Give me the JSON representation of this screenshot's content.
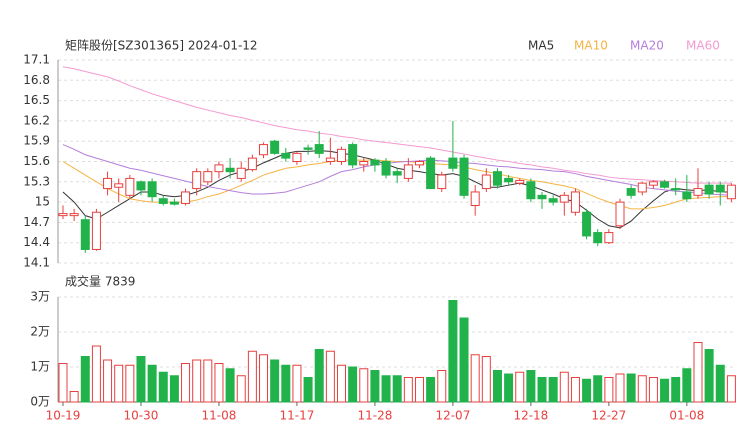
{
  "chart_data": {
    "type": "candlestick",
    "title": "矩阵股份[SZ301365] 2024-01-12",
    "volume_title": "成交量 7839",
    "up_color": "#e8403f",
    "down_color": "#21b24b",
    "categories": [
      "10-19",
      null,
      null,
      null,
      null,
      null,
      null,
      "10-30",
      null,
      null,
      null,
      null,
      null,
      null,
      "11-08",
      null,
      null,
      null,
      null,
      null,
      null,
      "11-17",
      null,
      null,
      null,
      null,
      null,
      null,
      "11-28",
      null,
      null,
      null,
      null,
      null,
      null,
      "12-07",
      null,
      null,
      null,
      null,
      null,
      null,
      "12-18",
      null,
      null,
      null,
      null,
      null,
      null,
      "12-27",
      null,
      null,
      null,
      null,
      null,
      null,
      "01-08",
      null,
      null,
      null,
      null
    ],
    "open": [
      14.8,
      14.8,
      14.74,
      14.3,
      15.2,
      15.22,
      15.1,
      15.3,
      15.3,
      15.05,
      15.0,
      14.98,
      15.2,
      15.3,
      15.45,
      15.5,
      15.35,
      15.48,
      15.7,
      15.9,
      15.72,
      15.6,
      15.8,
      15.85,
      15.6,
      15.6,
      15.85,
      15.55,
      15.62,
      15.6,
      15.45,
      15.35,
      15.55,
      15.65,
      15.2,
      15.65,
      15.65,
      14.95,
      15.2,
      15.45,
      15.35,
      15.28,
      15.3,
      15.1,
      15.05,
      15.0,
      14.85,
      14.85,
      14.55,
      14.4,
      14.65,
      15.2,
      15.15,
      15.25,
      15.3,
      15.2,
      15.15,
      15.1,
      15.25,
      15.25,
      15.05
    ],
    "high": [
      14.95,
      14.9,
      14.8,
      14.9,
      15.45,
      15.35,
      15.4,
      15.32,
      15.35,
      15.1,
      15.05,
      15.2,
      15.5,
      15.5,
      15.6,
      15.65,
      15.6,
      15.7,
      15.88,
      15.92,
      15.8,
      15.75,
      15.85,
      16.05,
      15.95,
      15.82,
      15.88,
      15.65,
      15.65,
      15.65,
      15.5,
      15.65,
      15.62,
      15.68,
      15.45,
      16.2,
      15.7,
      15.25,
      15.5,
      15.5,
      15.4,
      15.35,
      15.35,
      15.15,
      15.1,
      15.15,
      15.2,
      14.9,
      14.6,
      14.6,
      15.05,
      15.25,
      15.3,
      15.32,
      15.33,
      15.35,
      15.4,
      15.5,
      15.3,
      15.3,
      15.28
    ],
    "low": [
      14.75,
      14.72,
      14.25,
      14.28,
      15.1,
      15.0,
      15.05,
      15.1,
      15.0,
      14.95,
      14.95,
      14.95,
      15.1,
      15.25,
      15.35,
      15.35,
      15.3,
      15.45,
      15.65,
      15.7,
      15.6,
      15.55,
      15.7,
      15.65,
      15.55,
      15.55,
      15.5,
      15.45,
      15.45,
      15.35,
      15.28,
      15.3,
      15.5,
      15.2,
      15.15,
      15.45,
      15.05,
      14.8,
      15.15,
      15.2,
      15.25,
      15.25,
      15.0,
      14.9,
      14.95,
      14.8,
      14.8,
      14.45,
      14.35,
      14.38,
      14.6,
      15.05,
      15.1,
      15.2,
      15.2,
      15.1,
      15.0,
      15.05,
      15.05,
      14.95,
      15.0
    ],
    "close": [
      14.83,
      14.83,
      14.3,
      14.85,
      15.35,
      15.27,
      15.35,
      15.18,
      15.08,
      14.98,
      14.97,
      15.15,
      15.45,
      15.45,
      15.55,
      15.45,
      15.5,
      15.65,
      15.85,
      15.72,
      15.65,
      15.72,
      15.78,
      15.72,
      15.65,
      15.78,
      15.55,
      15.6,
      15.55,
      15.4,
      15.4,
      15.55,
      15.6,
      15.2,
      15.4,
      15.5,
      15.1,
      15.15,
      15.4,
      15.25,
      15.3,
      15.32,
      15.05,
      15.05,
      15.0,
      15.1,
      15.15,
      14.5,
      14.4,
      14.55,
      15.0,
      15.1,
      15.28,
      15.3,
      15.22,
      15.18,
      15.05,
      15.2,
      15.12,
      15.15,
      15.25
    ],
    "volume": [
      1.1,
      0.3,
      1.3,
      1.6,
      1.2,
      1.05,
      1.05,
      1.3,
      1.05,
      0.85,
      0.75,
      1.1,
      1.2,
      1.2,
      1.1,
      0.95,
      0.75,
      1.45,
      1.35,
      1.2,
      1.05,
      1.05,
      0.7,
      1.5,
      1.45,
      1.05,
      1.0,
      0.95,
      0.9,
      0.75,
      0.75,
      0.7,
      0.7,
      0.7,
      0.9,
      2.9,
      2.4,
      1.35,
      1.3,
      0.9,
      0.8,
      0.85,
      0.9,
      0.7,
      0.7,
      0.85,
      0.7,
      0.65,
      0.75,
      0.7,
      0.8,
      0.8,
      0.75,
      0.7,
      0.65,
      0.7,
      0.95,
      1.7,
      1.5,
      1.05,
      0.75
    ],
    "series": [
      {
        "name": "MA5",
        "color": "#333333",
        "values": [
          15.15,
          15.0,
          14.8,
          14.75,
          14.85,
          14.95,
          15.05,
          15.15,
          15.15,
          15.1,
          15.08,
          15.1,
          15.15,
          15.22,
          15.32,
          15.4,
          15.45,
          15.5,
          15.58,
          15.65,
          15.72,
          15.75,
          15.75,
          15.76,
          15.75,
          15.72,
          15.7,
          15.66,
          15.62,
          15.56,
          15.5,
          15.47,
          15.45,
          15.42,
          15.4,
          15.42,
          15.38,
          15.3,
          15.22,
          15.22,
          15.25,
          15.28,
          15.24,
          15.18,
          15.12,
          15.05,
          15.0,
          14.88,
          14.75,
          14.65,
          14.62,
          14.72,
          14.88,
          15.02,
          15.15,
          15.2,
          15.18,
          15.17,
          15.18,
          15.15,
          15.15
        ]
      },
      {
        "name": "MA10",
        "color": "#f5b342",
        "values": [
          15.6,
          15.5,
          15.4,
          15.3,
          15.2,
          15.12,
          15.05,
          15.02,
          15.0,
          15.0,
          15.0,
          15.0,
          15.03,
          15.08,
          15.12,
          15.18,
          15.25,
          15.32,
          15.4,
          15.45,
          15.5,
          15.52,
          15.55,
          15.57,
          15.6,
          15.62,
          15.62,
          15.62,
          15.62,
          15.61,
          15.6,
          15.6,
          15.58,
          15.57,
          15.56,
          15.55,
          15.52,
          15.48,
          15.45,
          15.42,
          15.38,
          15.35,
          15.32,
          15.3,
          15.27,
          15.24,
          15.2,
          15.13,
          15.06,
          15.0,
          14.95,
          14.9,
          14.9,
          14.92,
          14.95,
          15.0,
          15.05,
          15.06,
          15.07,
          15.08,
          15.08
        ]
      },
      {
        "name": "MA20",
        "color": "#b57edc",
        "values": [
          15.85,
          15.78,
          15.7,
          15.65,
          15.6,
          15.55,
          15.5,
          15.47,
          15.43,
          15.39,
          15.35,
          15.31,
          15.27,
          15.23,
          15.2,
          15.17,
          15.14,
          15.12,
          15.12,
          15.13,
          15.15,
          15.2,
          15.25,
          15.3,
          15.38,
          15.45,
          15.48,
          15.52,
          15.55,
          15.57,
          15.59,
          15.6,
          15.61,
          15.62,
          15.61,
          15.6,
          15.58,
          15.57,
          15.55,
          15.53,
          15.52,
          15.5,
          15.49,
          15.48,
          15.46,
          15.45,
          15.42,
          15.38,
          15.35,
          15.32,
          15.29,
          15.26,
          15.22,
          15.2,
          15.18,
          15.16,
          15.15,
          15.14,
          15.12,
          15.11,
          15.1
        ]
      },
      {
        "name": "MA60",
        "color": "#f49ad0",
        "values": [
          17.0,
          16.97,
          16.93,
          16.89,
          16.85,
          16.79,
          16.72,
          16.66,
          16.6,
          16.55,
          16.5,
          16.45,
          16.4,
          16.36,
          16.32,
          16.28,
          16.25,
          16.21,
          16.17,
          16.13,
          16.1,
          16.07,
          16.05,
          16.02,
          16.0,
          15.97,
          15.95,
          15.92,
          15.9,
          15.88,
          15.86,
          15.84,
          15.82,
          15.8,
          15.77,
          15.74,
          15.71,
          15.68,
          15.65,
          15.62,
          15.6,
          15.57,
          15.55,
          15.52,
          15.5,
          15.47,
          15.45,
          15.42,
          15.4,
          15.37,
          15.35,
          15.34,
          15.33,
          15.32,
          15.31,
          15.3,
          15.29,
          15.28,
          15.28,
          15.28,
          15.28
        ]
      }
    ],
    "ylim": [
      14.1,
      17.1
    ],
    "yticks": [
      14.1,
      14.4,
      14.7,
      15,
      15.3,
      15.6,
      15.9,
      16.2,
      16.5,
      16.8,
      17.1
    ],
    "volume_ylim": [
      0,
      3
    ],
    "volume_yticks": [
      {
        "value": 0,
        "label": "0万"
      },
      {
        "value": 1,
        "label": "1万"
      },
      {
        "value": 2,
        "label": "2万"
      },
      {
        "value": 3,
        "label": "3万"
      }
    ],
    "grid": true
  }
}
